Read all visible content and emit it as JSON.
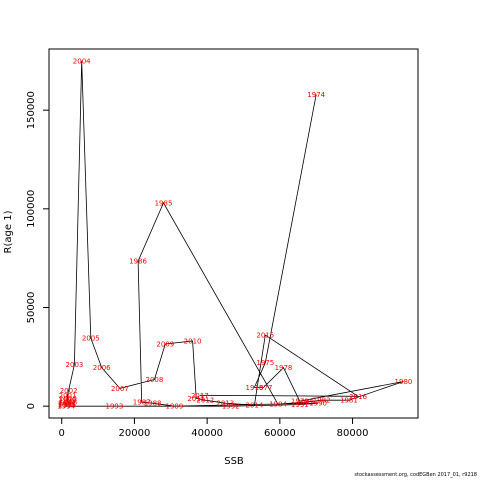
{
  "chart_data": {
    "type": "line",
    "title": "",
    "xlabel": "SSB",
    "ylabel": "R(age 1)",
    "xlim": [
      -3500,
      98000
    ],
    "ylim": [
      -6000,
      181000
    ],
    "xticks": [
      0,
      20000,
      40000,
      60000,
      80000
    ],
    "yticks": [
      0,
      50000,
      100000,
      150000
    ],
    "grid": false,
    "legend": "none",
    "line_color": "#000000",
    "label_color": "#ff0000",
    "points": [
      {
        "year": "1974",
        "x": 70000,
        "y": 158000
      },
      {
        "year": "1975",
        "x": 56000,
        "y": 22000
      },
      {
        "year": "1976",
        "x": 53000,
        "y": 9500
      },
      {
        "year": "1977",
        "x": 55500,
        "y": 9500
      },
      {
        "year": "1978",
        "x": 61000,
        "y": 19500
      },
      {
        "year": "1979",
        "x": 65500,
        "y": 2500
      },
      {
        "year": "1980",
        "x": 94000,
        "y": 12500
      },
      {
        "year": "1981",
        "x": 79000,
        "y": 3000
      },
      {
        "year": "1982",
        "x": 71500,
        "y": 3000
      },
      {
        "year": "1983",
        "x": 67000,
        "y": 2000
      },
      {
        "year": "1984",
        "x": 59500,
        "y": 1000
      },
      {
        "year": "1985",
        "x": 28000,
        "y": 103000
      },
      {
        "year": "1986",
        "x": 21000,
        "y": 73500
      },
      {
        "year": "1987",
        "x": 22000,
        "y": 2000
      },
      {
        "year": "1988",
        "x": 25000,
        "y": 1500
      },
      {
        "year": "1989",
        "x": 31000,
        "y": 0
      },
      {
        "year": "1990",
        "x": 70500,
        "y": 1500
      },
      {
        "year": "1991",
        "x": 65500,
        "y": 800
      },
      {
        "year": "1992",
        "x": 46500,
        "y": 0
      },
      {
        "year": "1993",
        "x": 14500,
        "y": 0
      },
      {
        "year": "1994",
        "x": 1200,
        "y": 0
      },
      {
        "year": "1995",
        "x": 1500,
        "y": 500
      },
      {
        "year": "1996",
        "x": 1300,
        "y": 1000
      },
      {
        "year": "1997",
        "x": 1500,
        "y": 1500
      },
      {
        "year": "1998",
        "x": 1800,
        "y": 2200
      },
      {
        "year": "1999",
        "x": 1500,
        "y": 3000
      },
      {
        "year": "2000",
        "x": 1700,
        "y": 4000
      },
      {
        "year": "2001",
        "x": 1600,
        "y": 5500
      },
      {
        "year": "2002",
        "x": 1900,
        "y": 8000
      },
      {
        "year": "2003",
        "x": 3500,
        "y": 21000
      },
      {
        "year": "2004",
        "x": 5500,
        "y": 175000
      },
      {
        "year": "2005",
        "x": 8000,
        "y": 34500
      },
      {
        "year": "2006",
        "x": 11000,
        "y": 19500
      },
      {
        "year": "2007",
        "x": 16000,
        "y": 9000
      },
      {
        "year": "2008",
        "x": 25500,
        "y": 13500
      },
      {
        "year": "2009",
        "x": 28500,
        "y": 31500
      },
      {
        "year": "2010",
        "x": 36000,
        "y": 33000
      },
      {
        "year": "2011",
        "x": 37000,
        "y": 4000
      },
      {
        "year": "2012",
        "x": 39500,
        "y": 3000
      },
      {
        "year": "2013",
        "x": 45000,
        "y": 1500
      },
      {
        "year": "2014",
        "x": 53000,
        "y": 500
      },
      {
        "year": "2015",
        "x": 56000,
        "y": 36000
      },
      {
        "year": "2016",
        "x": 81500,
        "y": 5000
      },
      {
        "year": "2017",
        "x": 38000,
        "y": 5500
      }
    ]
  },
  "footer_text": "stockassessment.org, codEGBen  2017_01, r9218"
}
